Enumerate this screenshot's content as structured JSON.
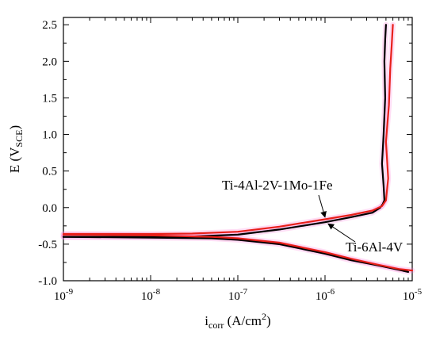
{
  "chart_data": {
    "type": "line",
    "xlabel": {
      "base": "i",
      "sub": "corr",
      "units": " (A/cm",
      "sup": "2",
      "close": ")"
    },
    "ylabel": {
      "base": "E (V",
      "sub": "SCE",
      "close": ")"
    },
    "xscale": "log",
    "xlim": [
      1e-09,
      1e-05
    ],
    "ylim": [
      -1.0,
      2.6
    ],
    "xticks": [
      {
        "value": 1e-09,
        "mantissa": "10",
        "exp": "-9"
      },
      {
        "value": 1e-08,
        "mantissa": "10",
        "exp": "-8"
      },
      {
        "value": 1e-07,
        "mantissa": "10",
        "exp": "-7"
      },
      {
        "value": 1e-06,
        "mantissa": "10",
        "exp": "-6"
      },
      {
        "value": 1e-05,
        "mantissa": "10",
        "exp": "-5"
      }
    ],
    "yticks": [
      "-1.0",
      "-0.5",
      "0.0",
      "0.5",
      "1.0",
      "1.5",
      "2.0",
      "2.5"
    ],
    "grid": false,
    "legend": "none",
    "series": [
      {
        "name": "Ti-6Al-4V",
        "color": "#000000",
        "anodic": [
          [
            1e-09,
            -0.4
          ],
          [
            1e-08,
            -0.4
          ],
          [
            3e-08,
            -0.395
          ],
          [
            1e-07,
            -0.37
          ],
          [
            3e-07,
            -0.3
          ],
          [
            1e-06,
            -0.2
          ],
          [
            2e-06,
            -0.13
          ],
          [
            3.5e-06,
            -0.07
          ],
          [
            4.3e-06,
            0.0
          ],
          [
            4.6e-06,
            0.05
          ],
          [
            4.8e-06,
            0.1
          ],
          [
            4.7e-06,
            0.3
          ],
          [
            4.5e-06,
            0.6
          ],
          [
            4.7e-06,
            1.0
          ],
          [
            4.9e-06,
            1.5
          ],
          [
            4.8e-06,
            2.0
          ],
          [
            4.9e-06,
            2.3
          ],
          [
            5e-06,
            2.5
          ]
        ],
        "cathodic": [
          [
            1e-09,
            -0.4
          ],
          [
            1e-08,
            -0.41
          ],
          [
            5e-08,
            -0.42
          ],
          [
            1e-07,
            -0.44
          ],
          [
            3e-07,
            -0.5
          ],
          [
            1e-06,
            -0.63
          ],
          [
            2e-06,
            -0.72
          ],
          [
            4e-06,
            -0.79
          ],
          [
            7e-06,
            -0.85
          ],
          [
            9e-06,
            -0.88
          ]
        ]
      },
      {
        "name": "Ti-4Al-2V-1Mo-1Fe",
        "color": "#e8201b",
        "anodic": [
          [
            1e-09,
            -0.36
          ],
          [
            1e-08,
            -0.36
          ],
          [
            3e-08,
            -0.355
          ],
          [
            1e-07,
            -0.33
          ],
          [
            3e-07,
            -0.26
          ],
          [
            1e-06,
            -0.16
          ],
          [
            2e-06,
            -0.1
          ],
          [
            3.5e-06,
            -0.04
          ],
          [
            4.5e-06,
            0.02
          ],
          [
            5e-06,
            0.1
          ],
          [
            5.3e-06,
            0.4
          ],
          [
            5e-06,
            0.9
          ],
          [
            5.4e-06,
            1.4
          ],
          [
            5.6e-06,
            1.9
          ],
          [
            5.8e-06,
            2.2
          ],
          [
            6e-06,
            2.5
          ]
        ],
        "cathodic": [
          [
            1e-09,
            -0.37
          ],
          [
            1e-08,
            -0.38
          ],
          [
            5e-08,
            -0.4
          ],
          [
            1e-07,
            -0.42
          ],
          [
            3e-07,
            -0.48
          ],
          [
            1e-06,
            -0.61
          ],
          [
            2e-06,
            -0.7
          ],
          [
            4e-06,
            -0.78
          ],
          [
            7e-06,
            -0.84
          ],
          [
            1e-05,
            -0.86
          ]
        ]
      }
    ],
    "annotations": [
      {
        "text": "Ti-4Al-2V-1Mo-1Fe",
        "target": [
          1e-06,
          -0.13
        ]
      },
      {
        "text": "Ti-6Al-4V",
        "target": [
          1e-06,
          -0.19
        ]
      }
    ]
  }
}
